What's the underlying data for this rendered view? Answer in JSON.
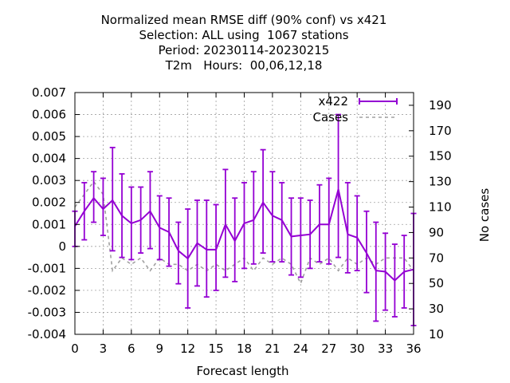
{
  "chart_data": {
    "type": "line",
    "title_lines": [
      "Normalized mean RMSE diff (90% conf) vs x421",
      "Selection: ALL using  1067 stations",
      "Period: 20230114-20230215",
      "T2m   Hours:  00,06,12,18"
    ],
    "xlabel": "Forecast length",
    "y2label": "No cases",
    "xlim": [
      0,
      36
    ],
    "ylim": [
      -0.004,
      0.007
    ],
    "y2lim": [
      10,
      200
    ],
    "xticks": [
      0,
      3,
      6,
      9,
      12,
      15,
      18,
      21,
      24,
      27,
      30,
      33,
      36
    ],
    "yticks": [
      -0.004,
      -0.003,
      -0.002,
      -0.001,
      0,
      0.001,
      0.002,
      0.003,
      0.004,
      0.005,
      0.006,
      0.007
    ],
    "ytick_labels": [
      "-0.004",
      "-0.003",
      "-0.002",
      "-0.001",
      "0",
      "0.001",
      "0.002",
      "0.003",
      "0.004",
      "0.005",
      "0.006",
      "0.007"
    ],
    "y2ticks": [
      10,
      30,
      50,
      70,
      90,
      110,
      130,
      150,
      170,
      190
    ],
    "grid": true,
    "legend": "top-right",
    "x": [
      0,
      1,
      2,
      3,
      4,
      5,
      6,
      7,
      8,
      9,
      10,
      11,
      12,
      13,
      14,
      15,
      16,
      17,
      18,
      19,
      20,
      21,
      22,
      23,
      24,
      25,
      26,
      27,
      28,
      29,
      30,
      31,
      32,
      33,
      34,
      35,
      36
    ],
    "series": [
      {
        "name": "x422",
        "color": "#9400d3",
        "axis": "y1",
        "values": [
          0.00092,
          0.0016,
          0.0022,
          0.0017,
          0.0021,
          0.0014,
          0.00105,
          0.0012,
          0.0016,
          0.00085,
          0.00065,
          -0.0002,
          -0.00055,
          0.00015,
          -0.00015,
          -0.00015,
          0.001,
          0.00025,
          0.00105,
          0.0012,
          0.002,
          0.0014,
          0.0012,
          0.00045,
          0.0005,
          0.00055,
          0.001,
          0.001,
          0.0026,
          0.00055,
          0.0004,
          -0.0003,
          -0.0011,
          -0.00115,
          -0.00155,
          -0.00115,
          -0.00105
        ],
        "err_low": [
          0.0,
          0.0003,
          0.0011,
          0.0005,
          -0.0002,
          -0.0005,
          -0.0006,
          -0.0003,
          -0.0001,
          -0.0006,
          -0.0009,
          -0.0017,
          -0.0028,
          -0.0018,
          -0.0023,
          -0.002,
          -0.0014,
          -0.0016,
          -0.001,
          -0.0008,
          -0.0003,
          -0.0007,
          -0.0007,
          -0.0013,
          -0.0014,
          -0.001,
          -0.0007,
          -0.0008,
          -0.0005,
          -0.0012,
          -0.0011,
          -0.0021,
          -0.0034,
          -0.0029,
          -0.0032,
          -0.0028,
          -0.0036
        ],
        "err_high": [
          0.0016,
          0.0029,
          0.0034,
          0.0031,
          0.0045,
          0.0033,
          0.0027,
          0.0027,
          0.0034,
          0.0023,
          0.0022,
          0.0011,
          0.0017,
          0.0021,
          0.0021,
          0.0019,
          0.0035,
          0.0022,
          0.0029,
          0.0034,
          0.0044,
          0.0034,
          0.0029,
          0.0022,
          0.0022,
          0.0021,
          0.0028,
          0.0031,
          0.006,
          0.0029,
          0.0023,
          0.0016,
          0.0011,
          0.0006,
          0.0001,
          0.0005,
          0.0015
        ]
      },
      {
        "name": "Cases",
        "color": "#a0a0a0",
        "axis": "y2",
        "values": [
          110,
          120,
          130,
          120,
          60,
          70,
          65,
          70,
          60,
          70,
          65,
          65,
          60,
          65,
          60,
          65,
          60,
          65,
          70,
          60,
          70,
          65,
          70,
          65,
          50,
          70,
          65,
          70,
          60,
          70,
          65,
          70,
          65,
          70,
          70,
          70,
          60
        ]
      }
    ]
  }
}
